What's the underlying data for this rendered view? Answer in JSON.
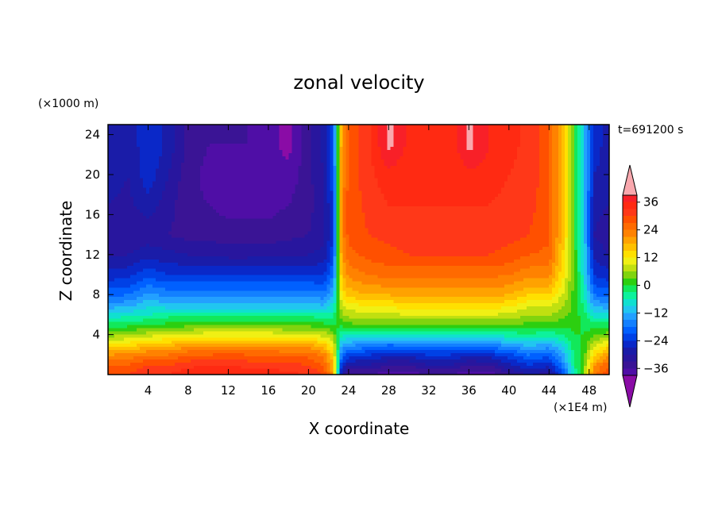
{
  "chart_data": {
    "type": "heatmap",
    "title": "zonal velocity",
    "xlabel": "X coordinate",
    "ylabel": "Z coordinate",
    "x_unit": "(×1E4 m)",
    "y_unit": "(×1000 m)",
    "time_label": "t=691200 s",
    "xlim": [
      0,
      50
    ],
    "ylim": [
      0,
      25
    ],
    "x_ticks": [
      "4",
      "8",
      "12",
      "16",
      "20",
      "24",
      "28",
      "32",
      "36",
      "40",
      "44",
      "48"
    ],
    "y_ticks": [
      "4",
      "8",
      "12",
      "16",
      "20",
      "24"
    ],
    "colorbar": {
      "levels": [
        -42,
        -39,
        -36,
        -33,
        -30,
        -27,
        -24,
        -21,
        -18,
        -15,
        -12,
        -9,
        -6,
        -3,
        0,
        3,
        6,
        9,
        12,
        15,
        18,
        21,
        24,
        27,
        30,
        33,
        36,
        39,
        42
      ],
      "tick_labels": [
        "36",
        "24",
        "12",
        "0",
        "−12",
        "−24",
        "−36"
      ],
      "tick_values": [
        36,
        24,
        12,
        0,
        -12,
        -24,
        -36
      ],
      "colors": [
        "#8a0ca6",
        "#4f0ea6",
        "#3a1495",
        "#28169e",
        "#1a1ca8",
        "#0a28c8",
        "#0041e6",
        "#0060ff",
        "#1380ff",
        "#23a0ff",
        "#21c6f0",
        "#10e0d0",
        "#0df29c",
        "#12e85a",
        "#2ccf10",
        "#80d40e",
        "#c0e010",
        "#f0f014",
        "#ffe000",
        "#ffc000",
        "#ffa200",
        "#ff8200",
        "#ff6a00",
        "#ff5000",
        "#ff3818",
        "#ff2a12",
        "#f82028",
        "#f9a8ae"
      ],
      "extend": "both"
    },
    "field": {
      "description": "Zonal velocity u(x, z) in m/s",
      "x": [
        0,
        2,
        4,
        6,
        8,
        10,
        12,
        14,
        16,
        18,
        20,
        21.5,
        22.5,
        23.3,
        24,
        26,
        28,
        30,
        32,
        34,
        36,
        38,
        40,
        42,
        44,
        45.5,
        46.5,
        47.5,
        48.5,
        50
      ],
      "z": [
        0,
        1,
        2,
        3,
        4,
        5,
        6,
        7,
        8,
        10,
        12,
        14,
        17,
        20,
        23,
        25
      ],
      "u": [
        [
          30,
          30,
          33,
          33,
          35,
          36,
          36,
          35,
          35,
          34,
          33,
          30,
          20,
          -30,
          -36,
          -36,
          -38,
          -38,
          -36,
          -36,
          -38,
          -38,
          -34,
          -30,
          -32,
          -20,
          -6,
          5,
          24,
          30
        ],
        [
          27,
          27,
          30,
          30,
          32,
          33,
          33,
          32,
          32,
          31,
          30,
          27,
          18,
          -24,
          -30,
          -30,
          -33,
          -33,
          -30,
          -30,
          -33,
          -33,
          -28,
          -24,
          -26,
          -16,
          -4,
          4,
          20,
          27
        ],
        [
          21,
          22,
          24,
          24,
          27,
          27,
          28,
          27,
          27,
          26,
          26,
          23,
          14,
          -18,
          -22,
          -24,
          -26,
          -26,
          -24,
          -24,
          -26,
          -25,
          -22,
          -18,
          -20,
          -12,
          -3,
          2,
          14,
          21
        ],
        [
          13,
          14,
          16,
          17,
          19,
          20,
          20,
          20,
          20,
          19,
          19,
          16,
          10,
          -12,
          -14,
          -16,
          -18,
          -17,
          -16,
          -16,
          -17,
          -16,
          -14,
          -11,
          -13,
          -8,
          -1,
          1,
          8,
          13
        ],
        [
          5,
          6,
          8,
          9,
          10,
          11,
          11,
          11,
          11,
          10,
          10,
          8,
          5,
          -6,
          -6,
          -7,
          -7,
          -6,
          -6,
          -6,
          -6,
          -6,
          -5,
          -4,
          -5,
          -3,
          0,
          0,
          3,
          5
        ],
        [
          -2,
          -1,
          0,
          1,
          2,
          3,
          3,
          3,
          3,
          2,
          2,
          1,
          0,
          1,
          2,
          3,
          3,
          3,
          3,
          3,
          3,
          3,
          3,
          2,
          2,
          1,
          1,
          -1,
          -2,
          -2
        ],
        [
          -8,
          -7,
          -6,
          -4,
          -4,
          -4,
          -4,
          -4,
          -4,
          -4,
          -4,
          -5,
          -4,
          5,
          7,
          8,
          8,
          9,
          9,
          9,
          9,
          9,
          8,
          6,
          6,
          4,
          2,
          -2,
          -8,
          -8
        ],
        [
          -14,
          -13,
          -10,
          -11,
          -11,
          -11,
          -11,
          -11,
          -11,
          -11,
          -11,
          -12,
          -8,
          8,
          11,
          13,
          13,
          14,
          14,
          14,
          14,
          14,
          13,
          10,
          10,
          6,
          2,
          -4,
          -13,
          -14
        ],
        [
          -19,
          -18,
          -14,
          -16,
          -16,
          -16,
          -16,
          -16,
          -16,
          -16,
          -16,
          -17,
          -12,
          12,
          16,
          18,
          18,
          19,
          19,
          19,
          19,
          19,
          18,
          15,
          15,
          8,
          2,
          -6,
          -18,
          -19
        ],
        [
          -26,
          -25,
          -22,
          -24,
          -24,
          -24,
          -24,
          -24,
          -24,
          -24,
          -24,
          -24,
          -18,
          17,
          22,
          24,
          25,
          25,
          25,
          25,
          25,
          25,
          24,
          22,
          22,
          12,
          2,
          -8,
          -24,
          -26
        ],
        [
          -30,
          -30,
          -28,
          -29,
          -30,
          -30,
          -31,
          -31,
          -30,
          -30,
          -30,
          -29,
          -22,
          20,
          26,
          28,
          29,
          30,
          30,
          30,
          30,
          30,
          29,
          27,
          26,
          14,
          2,
          -9,
          -28,
          -30
        ],
        [
          -32,
          -33,
          -32,
          -33,
          -34,
          -34,
          -35,
          -35,
          -35,
          -34,
          -33,
          -31,
          -24,
          22,
          28,
          30,
          31,
          32,
          32,
          32,
          32,
          32,
          31,
          30,
          28,
          15,
          2,
          -10,
          -30,
          -32
        ],
        [
          -30,
          -31,
          -28,
          -32,
          -35,
          -36,
          -37,
          -37,
          -37,
          -36,
          -34,
          -31,
          -23,
          22,
          28,
          31,
          33,
          33,
          33,
          33,
          33,
          33,
          32,
          31,
          28,
          15,
          2,
          -10,
          -29,
          -30
        ],
        [
          -28,
          -30,
          -25,
          -30,
          -35,
          -37,
          -39,
          -37,
          -38,
          -38,
          -34,
          -30,
          -22,
          21,
          28,
          32,
          35,
          34,
          33,
          33,
          35,
          35,
          33,
          32,
          28,
          15,
          2,
          -10,
          -27,
          -28
        ],
        [
          -28,
          -30,
          -24,
          -28,
          -34,
          -36,
          -36,
          -36,
          -38,
          -40,
          -34,
          -29,
          -21,
          20,
          28,
          32,
          40,
          35,
          33,
          34,
          40,
          36,
          34,
          32,
          28,
          15,
          2,
          -10,
          -26,
          -28
        ],
        [
          -28,
          -30,
          -24,
          -28,
          -34,
          -36,
          -36,
          -36,
          -38,
          -40,
          -34,
          -29,
          -21,
          20,
          28,
          32,
          40,
          35,
          33,
          34,
          40,
          36,
          34,
          32,
          28,
          15,
          2,
          -10,
          -26,
          -28
        ]
      ]
    }
  }
}
